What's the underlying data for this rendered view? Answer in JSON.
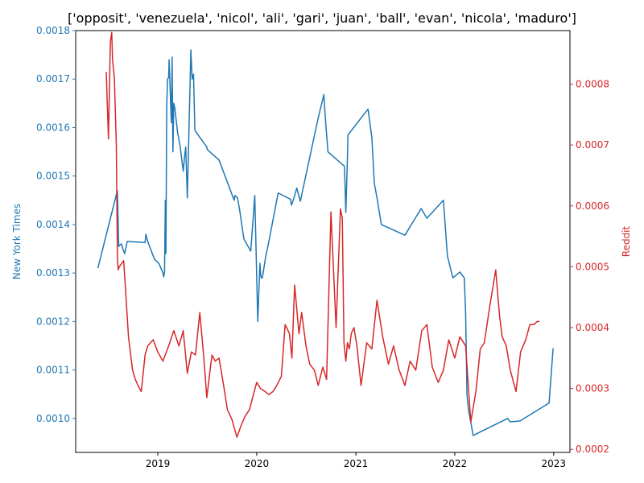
{
  "chart_data": {
    "type": "line",
    "title": "['opposit', 'venezuela', 'nicol', 'ali', 'gari', 'juan', 'ball', 'evan', 'nicola', 'maduro']",
    "x_tick_labels": [
      "2019",
      "2020",
      "2021",
      "2022",
      "2023"
    ],
    "x_ticks": [
      "2019-01-01",
      "2020-01-01",
      "2021-01-01",
      "2022-01-01",
      "2023-01-01"
    ],
    "xlim": [
      "2018-03-04",
      "2023-03-02"
    ],
    "left_axis": {
      "label": "New York Times",
      "color": "#1f77b4",
      "ylim": [
        0.00093,
        0.0018
      ],
      "ticks": [
        0.001,
        0.0011,
        0.0012,
        0.0013,
        0.0014,
        0.0015,
        0.0016,
        0.0017,
        0.0018
      ],
      "tick_labels": [
        "0.0010",
        "0.0011",
        "0.0012",
        "0.0013",
        "0.0014",
        "0.0015",
        "0.0016",
        "0.0017",
        "0.0018"
      ]
    },
    "right_axis": {
      "label": "Reddit",
      "color": "#d62728",
      "ylim": [
        0.000195,
        0.000888
      ],
      "ticks": [
        0.0002,
        0.0003,
        0.0004,
        0.0005,
        0.0006,
        0.0007,
        0.0008
      ],
      "tick_labels": [
        "0.0002",
        "0.0003",
        "0.0004",
        "0.0005",
        "0.0006",
        "0.0007",
        "0.0008"
      ]
    },
    "series": [
      {
        "name": "New York Times",
        "axis": "left",
        "color": "#1f77b4",
        "x": [
          "2018-05-25",
          "2018-08-05",
          "2018-08-10",
          "2018-08-15",
          "2018-08-20",
          "2018-08-25",
          "2018-09-01",
          "2018-09-10",
          "2018-10-15",
          "2018-11-15",
          "2018-11-18",
          "2018-11-25",
          "2018-12-20",
          "2019-01-05",
          "2019-01-20",
          "2019-01-23",
          "2019-01-26",
          "2019-01-29",
          "2019-01-31",
          "2019-02-03",
          "2019-02-06",
          "2019-02-10",
          "2019-02-12",
          "2019-02-20",
          "2019-02-23",
          "2019-02-26",
          "2019-03-01",
          "2019-03-05",
          "2019-03-15",
          "2019-03-25",
          "2019-04-05",
          "2019-04-10",
          "2019-04-14",
          "2019-04-20",
          "2019-04-28",
          "2019-05-03",
          "2019-05-08",
          "2019-05-13",
          "2019-05-18",
          "2019-05-23",
          "2019-07-01",
          "2019-07-02",
          "2019-08-15",
          "2019-10-10",
          "2019-10-13",
          "2019-10-22",
          "2019-10-30",
          "2019-11-15",
          "2019-12-10",
          "2019-12-25",
          "2020-01-05",
          "2020-01-13",
          "2020-01-16",
          "2020-01-18",
          "2020-01-22",
          "2020-02-03",
          "2020-02-15",
          "2020-03-20",
          "2020-03-28",
          "2020-05-05",
          "2020-05-08",
          "2020-05-15",
          "2020-05-28",
          "2020-06-10",
          "2020-08-15",
          "2020-09-05",
          "2020-09-10",
          "2020-09-20",
          "2020-11-20",
          "2020-11-25",
          "2020-11-30",
          "2020-12-03",
          "2021-02-15",
          "2021-03-01",
          "2021-03-10",
          "2021-03-20",
          "2021-04-05",
          "2021-07-01",
          "2021-08-30",
          "2021-09-20",
          "2021-11-20",
          "2021-12-05",
          "2021-12-25",
          "2022-01-20",
          "2022-02-05",
          "2022-02-10",
          "2022-02-15",
          "2022-02-20",
          "2022-03-10",
          "2022-07-15",
          "2022-07-25",
          "2022-08-30",
          "2022-12-15",
          "2022-12-30"
        ],
        "y": [
          0.00131,
          0.00147,
          0.001355,
          0.001358,
          0.00136,
          0.00135,
          0.00134,
          0.001365,
          0.001364,
          0.001363,
          0.00138,
          0.001365,
          0.001328,
          0.00132,
          0.0013,
          0.001292,
          0.001302,
          0.00145,
          0.00134,
          0.00164,
          0.0017,
          0.001703,
          0.00174,
          0.00161,
          0.001745,
          0.00155,
          0.00165,
          0.00164,
          0.00159,
          0.00156,
          0.00151,
          0.00154,
          0.00156,
          0.001455,
          0.00164,
          0.00176,
          0.0017,
          0.00171,
          0.001595,
          0.00159,
          0.00156,
          0.001555,
          0.001533,
          0.00145,
          0.00146,
          0.001455,
          0.00143,
          0.00137,
          0.001345,
          0.00146,
          0.0012,
          0.00132,
          0.001295,
          0.00129,
          0.00129,
          0.001333,
          0.001365,
          0.001465,
          0.001463,
          0.001452,
          0.00144,
          0.00145,
          0.001475,
          0.001448,
          0.00162,
          0.001668,
          0.001623,
          0.00155,
          0.00152,
          0.001425,
          0.00152,
          0.001585,
          0.001638,
          0.00158,
          0.001485,
          0.001455,
          0.0014,
          0.001378,
          0.001433,
          0.001413,
          0.00145,
          0.001335,
          0.00129,
          0.001302,
          0.00129,
          0.00122,
          0.00105,
          0.00102,
          0.000965,
          0.001,
          0.000993,
          0.000995,
          0.001032,
          0.001145
        ]
      },
      {
        "name": "Reddit",
        "axis": "right",
        "color": "#d62728",
        "x": [
          "2018-06-25",
          "2018-07-03",
          "2018-07-10",
          "2018-07-15",
          "2018-07-18",
          "2018-07-25",
          "2018-08-01",
          "2018-08-05",
          "2018-08-08",
          "2018-08-12",
          "2018-08-20",
          "2018-08-28",
          "2018-09-05",
          "2018-09-15",
          "2018-09-30",
          "2018-10-10",
          "2018-10-20",
          "2018-11-01",
          "2018-11-15",
          "2018-11-25",
          "2018-12-05",
          "2018-12-15",
          "2019-01-01",
          "2019-01-20",
          "2019-02-10",
          "2019-03-01",
          "2019-03-20",
          "2019-04-05",
          "2019-04-20",
          "2019-05-05",
          "2019-05-20",
          "2019-06-05",
          "2019-06-20",
          "2019-07-01",
          "2019-07-20",
          "2019-08-01",
          "2019-08-15",
          "2019-09-01",
          "2019-09-15",
          "2019-10-01",
          "2019-10-20",
          "2019-11-05",
          "2019-11-20",
          "2019-12-05",
          "2019-12-20",
          "2020-01-01",
          "2020-01-15",
          "2020-02-01",
          "2020-02-15",
          "2020-03-01",
          "2020-03-15",
          "2020-04-01",
          "2020-04-15",
          "2020-05-01",
          "2020-05-10",
          "2020-05-20",
          "2020-06-05",
          "2020-06-15",
          "2020-07-01",
          "2020-07-15",
          "2020-08-01",
          "2020-08-15",
          "2020-09-01",
          "2020-09-15",
          "2020-10-01",
          "2020-10-20",
          "2020-11-05",
          "2020-11-12",
          "2020-11-18",
          "2020-11-25",
          "2020-12-01",
          "2020-12-08",
          "2020-12-15",
          "2020-12-25",
          "2021-01-05",
          "2021-01-20",
          "2021-02-10",
          "2021-03-01",
          "2021-03-20",
          "2021-04-10",
          "2021-05-01",
          "2021-05-20",
          "2021-06-10",
          "2021-07-01",
          "2021-07-20",
          "2021-08-10",
          "2021-09-01",
          "2021-09-20",
          "2021-10-10",
          "2021-11-01",
          "2021-11-20",
          "2021-12-10",
          "2022-01-01",
          "2022-01-20",
          "2022-02-10",
          "2022-03-01",
          "2022-03-20",
          "2022-04-05",
          "2022-04-20",
          "2022-05-10",
          "2022-06-01",
          "2022-06-15",
          "2022-06-25",
          "2022-07-10",
          "2022-07-25",
          "2022-08-15",
          "2022-09-01",
          "2022-09-20",
          "2022-10-05",
          "2022-10-20",
          "2022-11-01",
          "2022-11-10"
        ],
        "y": [
          0.00082,
          0.00071,
          0.00087,
          0.000885,
          0.00084,
          0.00081,
          0.0007,
          0.00052,
          0.000495,
          0.0005,
          0.000505,
          0.00051,
          0.000455,
          0.000385,
          0.00033,
          0.000315,
          0.000305,
          0.000295,
          0.000355,
          0.00037,
          0.000375,
          0.00038,
          0.00036,
          0.000345,
          0.00037,
          0.000395,
          0.00037,
          0.000395,
          0.000325,
          0.00036,
          0.000355,
          0.000425,
          0.00035,
          0.000285,
          0.000355,
          0.000345,
          0.00035,
          0.000305,
          0.000265,
          0.00025,
          0.00022,
          0.00024,
          0.000255,
          0.000265,
          0.00029,
          0.00031,
          0.0003,
          0.000295,
          0.00029,
          0.000295,
          0.000305,
          0.00032,
          0.000405,
          0.00039,
          0.00035,
          0.00047,
          0.00039,
          0.000425,
          0.00037,
          0.00034,
          0.00033,
          0.000305,
          0.000335,
          0.000315,
          0.00059,
          0.0004,
          0.000595,
          0.00058,
          0.000375,
          0.000345,
          0.000375,
          0.000365,
          0.00039,
          0.0004,
          0.00037,
          0.000305,
          0.000375,
          0.000365,
          0.000445,
          0.000385,
          0.00034,
          0.00037,
          0.00033,
          0.000305,
          0.000345,
          0.00033,
          0.000395,
          0.000405,
          0.000335,
          0.00031,
          0.00033,
          0.00038,
          0.00035,
          0.000385,
          0.00037,
          0.000245,
          0.000295,
          0.000365,
          0.000375,
          0.000435,
          0.000495,
          0.00042,
          0.000385,
          0.00037,
          0.00033,
          0.000295,
          0.00036,
          0.00038,
          0.000405,
          0.000405,
          0.00041,
          0.00041
        ]
      }
    ]
  }
}
